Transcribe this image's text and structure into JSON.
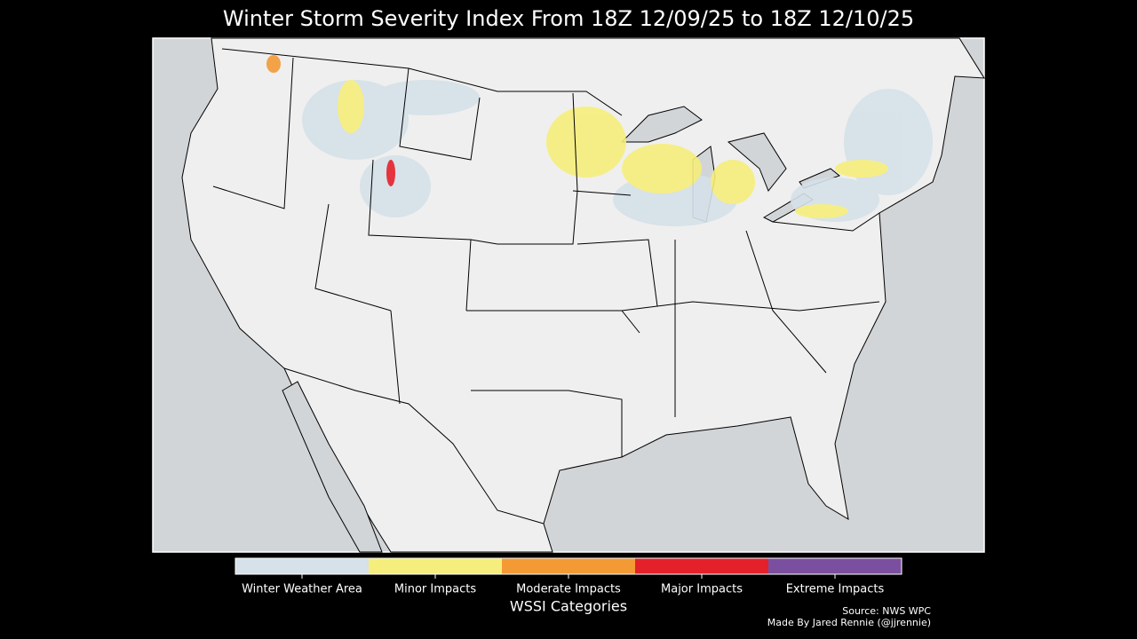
{
  "title": "Winter Storm Severity Index From 18Z 12/09/25 to 18Z 12/10/25",
  "legend": {
    "title": "WSSI Categories",
    "categories": [
      {
        "label": "Winter Weather Area",
        "color": "#d6e1e9"
      },
      {
        "label": "Minor Impacts",
        "color": "#f6ee7c"
      },
      {
        "label": "Moderate Impacts",
        "color": "#f39a35"
      },
      {
        "label": "Major Impacts",
        "color": "#e4202a"
      },
      {
        "label": "Extreme Impacts",
        "color": "#7b4fa0"
      }
    ]
  },
  "credits": {
    "source": "Source: NWS WPC",
    "author": "Made By Jared Rennie (@jjrennie)"
  }
}
